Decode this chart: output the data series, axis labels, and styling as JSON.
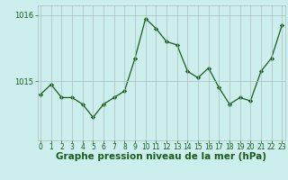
{
  "x": [
    0,
    1,
    2,
    3,
    4,
    5,
    6,
    7,
    8,
    9,
    10,
    11,
    12,
    13,
    14,
    15,
    16,
    17,
    18,
    19,
    20,
    21,
    22,
    23
  ],
  "y": [
    1014.8,
    1014.95,
    1014.75,
    1014.75,
    1014.65,
    1014.45,
    1014.65,
    1014.75,
    1014.85,
    1015.35,
    1015.95,
    1015.8,
    1015.6,
    1015.55,
    1015.15,
    1015.05,
    1015.2,
    1014.9,
    1014.65,
    1014.75,
    1014.7,
    1015.15,
    1015.35,
    1015.85
  ],
  "line_color": "#1a5c1a",
  "marker": "D",
  "marker_size": 2.2,
  "background_color": "#cceeed",
  "grid_color": "#aabfbf",
  "yticks": [
    1015,
    1016
  ],
  "xtick_labels": [
    "0",
    "1",
    "2",
    "3",
    "4",
    "5",
    "6",
    "7",
    "8",
    "9",
    "10",
    "11",
    "12",
    "13",
    "14",
    "15",
    "16",
    "17",
    "18",
    "19",
    "20",
    "21",
    "22",
    "23"
  ],
  "xlabel": "Graphe pression niveau de la mer (hPa)",
  "ylim": [
    1014.1,
    1016.15
  ],
  "xlim": [
    -0.3,
    23.3
  ],
  "xlabel_fontsize": 7.5,
  "tick_fontsize": 6.0,
  "xlabel_fontweight": "bold"
}
